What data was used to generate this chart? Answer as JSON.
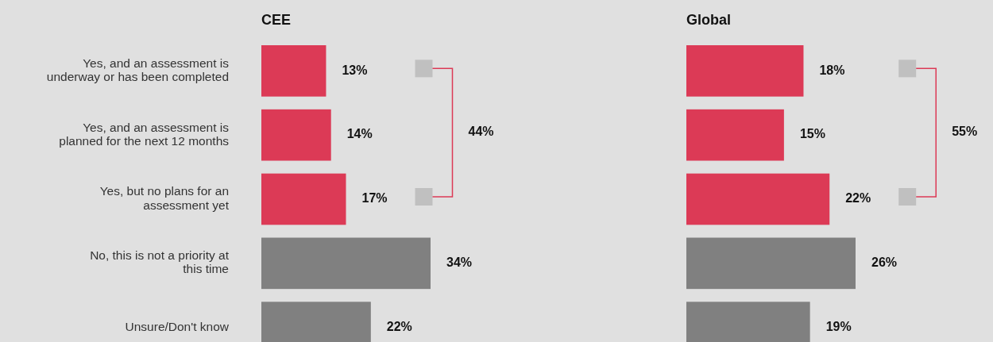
{
  "chart_data": [
    {
      "type": "bar",
      "orientation": "horizontal",
      "title": "CEE",
      "categories": [
        "Yes, and an assessment is underway or has been completed",
        "Yes, and an assessment is planned for the next 12 months",
        "Yes, but no plans for an assessment yet",
        "No, this is not a priority at this time",
        "Unsure/Don't know"
      ],
      "values": [
        13,
        14,
        17,
        34,
        22
      ],
      "colors": [
        "#dc3a56",
        "#dc3a56",
        "#dc3a56",
        "#808080",
        "#808080"
      ],
      "value_labels": [
        "13%",
        "14%",
        "17%",
        "34%",
        "22%"
      ],
      "tick_labels": "y",
      "annotations": [
        "44%"
      ]
    },
    {
      "type": "bar",
      "orientation": "horizontal",
      "title": "Global",
      "categories": [
        null,
        null,
        null,
        null,
        null
      ],
      "values": [
        18,
        15,
        22,
        26,
        19
      ],
      "colors": [
        "#dc3a56",
        "#dc3a56",
        "#dc3a56",
        "#808080",
        "#808080"
      ],
      "value_labels": [
        "18%",
        "15%",
        "22%",
        "26%",
        "19%"
      ],
      "tick_labels": false,
      "annotations": [
        "55%"
      ]
    }
  ]
}
